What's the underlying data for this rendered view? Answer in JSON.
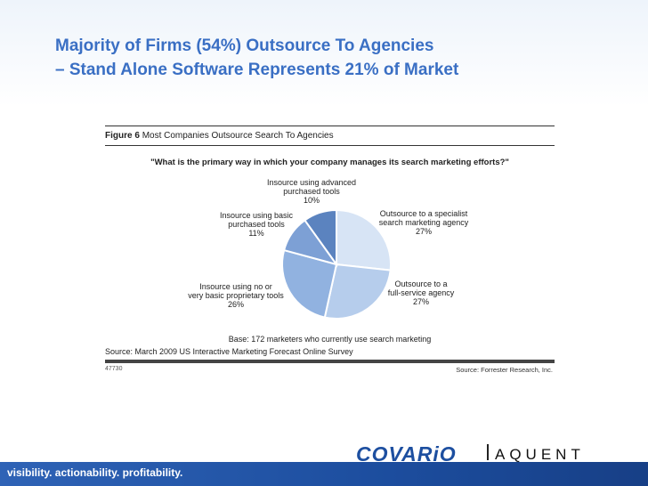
{
  "slide": {
    "title_line1": "Majority of Firms (54%) Outsource To Agencies",
    "title_line2": "– Stand Alone Software Represents 21% of Market",
    "tagline": "visibility. actionability. profitability.",
    "logo_covario": "COVARiO",
    "logo_aquent": "AQUENT"
  },
  "figure": {
    "label": "Figure 6",
    "header_title": "Most Companies Outsource Search To Agencies",
    "question": "\"What is the primary way in which your company manages its search marketing efforts?\"",
    "base": "Base: 172 marketers who currently use search marketing",
    "source": "Source: March 2009 US Interactive Marketing Forecast Online Survey",
    "id": "47730",
    "credit": "Source: Forrester Research, Inc."
  },
  "chart_data": {
    "type": "pie",
    "slices": [
      {
        "label_lines": [
          "Outsource to a specialist",
          "search marketing agency"
        ],
        "pct_label": "27%",
        "value": 27,
        "color": "#d7e4f5"
      },
      {
        "label_lines": [
          "Outsource to a",
          "full-service agency"
        ],
        "pct_label": "27%",
        "value": 27,
        "color": "#b6cdec"
      },
      {
        "label_lines": [
          "Insource using no or",
          "very basic proprietary tools"
        ],
        "pct_label": "26%",
        "value": 26,
        "color": "#91b2e0"
      },
      {
        "label_lines": [
          "Insource using basic",
          "purchased tools"
        ],
        "pct_label": "11%",
        "value": 11,
        "color": "#7da0d5"
      },
      {
        "label_lines": [
          "Insource using advanced",
          "purchased tools"
        ],
        "pct_label": "10%",
        "value": 10,
        "color": "#5b83bf"
      }
    ]
  }
}
